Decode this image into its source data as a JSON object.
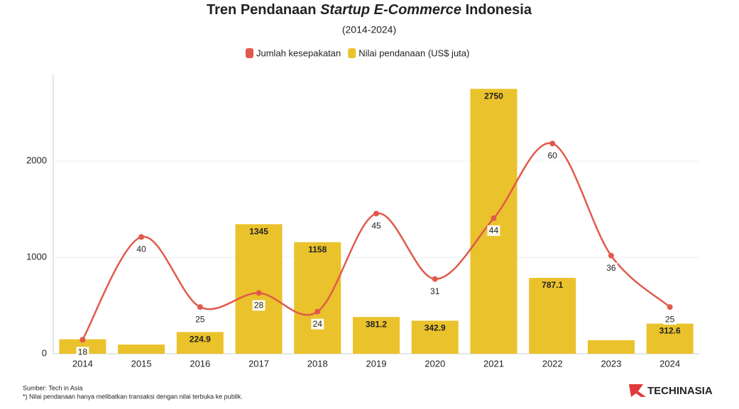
{
  "chart_data": {
    "type": "bar",
    "title": [
      "Tren Pendanaan",
      "Startup E-Commerce",
      "Indonesia"
    ],
    "subtitle": "(2014-2024)",
    "categories": [
      "2014",
      "2015",
      "2016",
      "2017",
      "2018",
      "2019",
      "2020",
      "2021",
      "2022",
      "2023",
      "2024"
    ],
    "series": [
      {
        "name": "Jumlah kesepakatan",
        "type": "line",
        "axis": "y2",
        "color": "#e05a4b",
        "values": [
          18,
          40,
          25,
          28,
          24,
          45,
          31,
          44,
          60,
          36,
          25
        ]
      },
      {
        "name": "Nilai pendanaan (US$ juta)",
        "type": "bar",
        "color": "#eac22b",
        "values": [
          150,
          95,
          224.9,
          1345,
          1158,
          381.2,
          342.9,
          2750,
          787.1,
          140,
          312.6
        ],
        "value_labels": [
          null,
          null,
          "224.9",
          "1345",
          "1158",
          "381.2",
          "342.9",
          "2750",
          "787.1",
          null,
          "312.6"
        ]
      }
    ],
    "ylim": [
      0,
      2900
    ],
    "yticks": [
      0,
      1000,
      2000
    ],
    "y2lim": [
      15,
      74.8
    ],
    "grid": true,
    "legend": "top",
    "source": "Sumber: Tech in Asia",
    "note": "*) Nilai pendanaan hanya melibatkan transaksi dengan nilai terbuka ke publik.",
    "logo": "TECHINASIA"
  }
}
